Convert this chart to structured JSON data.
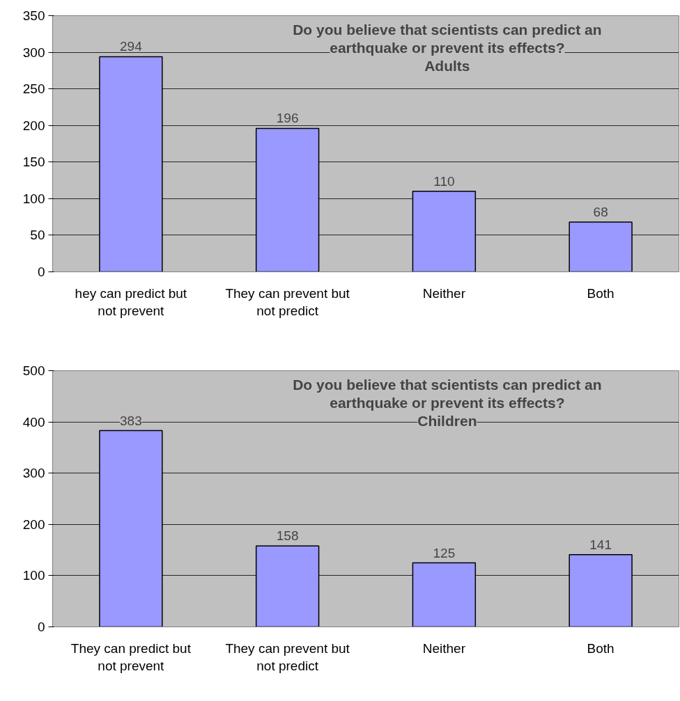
{
  "chart_data": [
    {
      "type": "bar",
      "title": "Do you believe that scientists can predict an earthquake or prevent its effects?",
      "subtitle": "Adults",
      "categories": [
        "hey can predict but not prevent",
        "They can prevent but not predict",
        "Neither",
        "Both"
      ],
      "values": [
        294,
        196,
        110,
        68
      ],
      "color": "#9999ff",
      "ylim": [
        0,
        350
      ],
      "yticks": [
        0,
        50,
        100,
        150,
        200,
        250,
        300,
        350
      ],
      "grid": "y",
      "data_labels": true
    },
    {
      "type": "bar",
      "title": "Do you believe that scientists can predict an earthquake or prevent its effects?",
      "subtitle": "Children",
      "categories": [
        "They can predict but not prevent",
        "They can prevent but not predict",
        "Neither",
        "Both"
      ],
      "values": [
        383,
        158,
        125,
        141
      ],
      "color": "#9999ff",
      "ylim": [
        0,
        500
      ],
      "yticks": [
        0,
        100,
        200,
        300,
        400,
        500
      ],
      "grid": "y",
      "data_labels": true
    }
  ]
}
